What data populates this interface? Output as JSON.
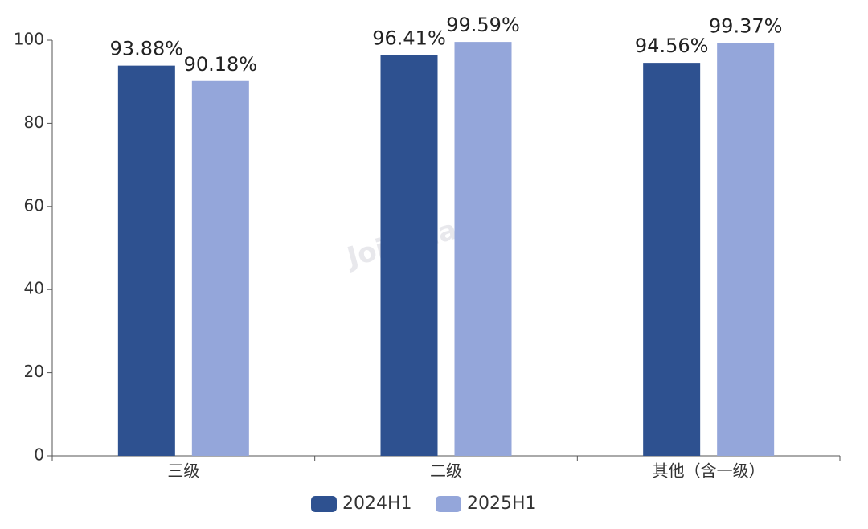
{
  "chart_data": {
    "type": "bar",
    "watermark": "Joinchain",
    "categories": [
      "三级",
      "二级",
      "其他（含一级）"
    ],
    "series": [
      {
        "name": "2024H1",
        "color": "#2e5190",
        "values": [
          93.88,
          96.41,
          94.56
        ],
        "value_labels": [
          "93.88%",
          "96.41%",
          "94.56%"
        ]
      },
      {
        "name": "2025H1",
        "color": "#94a6da",
        "values": [
          90.18,
          99.59,
          99.37
        ],
        "value_labels": [
          "90.18%",
          "99.59%",
          "99.37%"
        ]
      }
    ],
    "ylim": [
      0,
      100
    ],
    "yticks": [
      0,
      20,
      40,
      60,
      80,
      100
    ],
    "legend": "bottom"
  }
}
